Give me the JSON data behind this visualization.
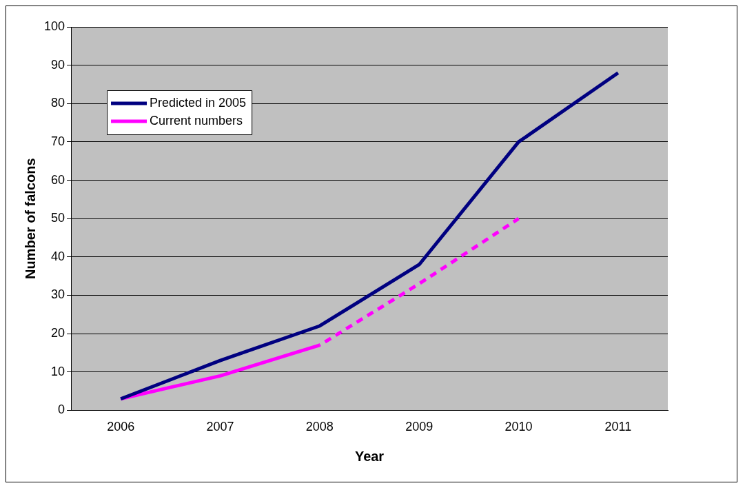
{
  "chart_data": {
    "type": "line",
    "xlabel": "Year",
    "ylabel": "Number of falcons",
    "categories": [
      "2006",
      "2007",
      "2008",
      "2009",
      "2010",
      "2011"
    ],
    "series": [
      {
        "name": "Predicted in 2005",
        "color": "#000080",
        "values": [
          3,
          13,
          22,
          38,
          70,
          88
        ]
      },
      {
        "name": "Current numbers",
        "color": "#ff00ff",
        "values": [
          3,
          9,
          17,
          null,
          null,
          null
        ]
      },
      {
        "color": "#ff00ff",
        "line_style": "dashed",
        "values": [
          null,
          null,
          17,
          33,
          50,
          null
        ]
      }
    ],
    "ylim": [
      0,
      100
    ],
    "yticks": [
      0,
      10,
      20,
      30,
      40,
      50,
      60,
      70,
      80,
      90,
      100
    ],
    "grid": "y",
    "legend": "top left",
    "marker": "none",
    "line_style": "solid"
  }
}
